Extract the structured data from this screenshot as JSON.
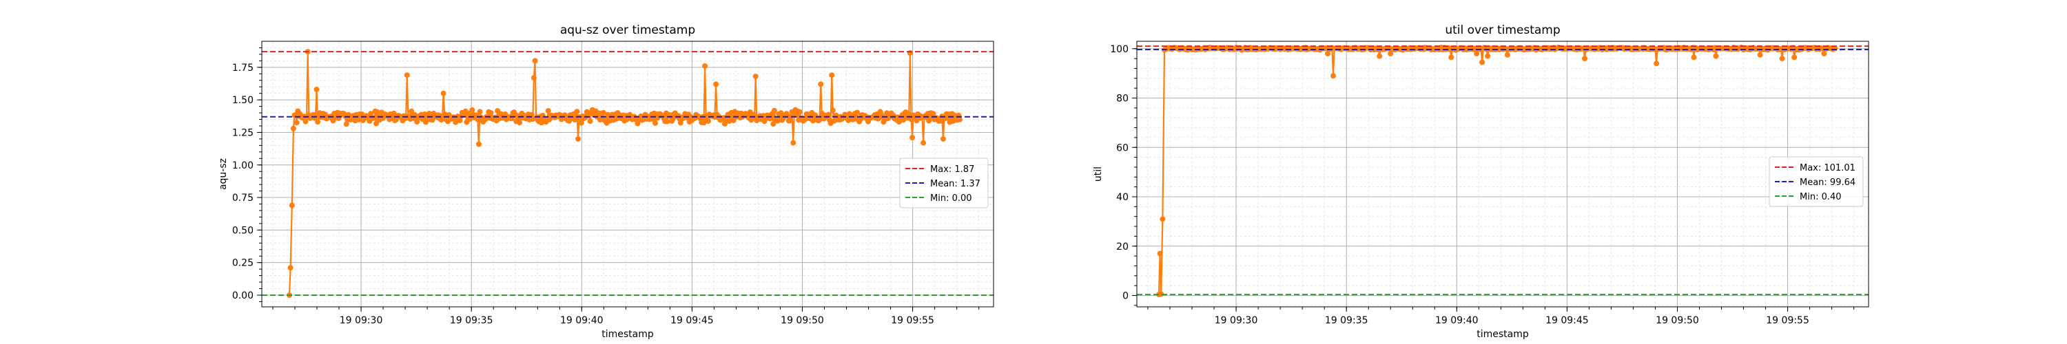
{
  "colors": {
    "series": "#ff7f0e",
    "max_line": "#d62728",
    "mean_line": "#1f1fb4",
    "min_line": "#2ca02c",
    "grid_major": "#b0b0b0",
    "grid_minor": "#e6e6e6"
  },
  "chart_data": [
    {
      "type": "line",
      "title": "aqu-sz over timestamp",
      "xlabel": "timestamp",
      "ylabel": "aqu-sz",
      "xlim": [
        "09:25:30",
        "09:58:40"
      ],
      "ylim": [
        -0.09,
        1.95
      ],
      "x_ticks": [
        "19 09:30",
        "19 09:35",
        "19 09:40",
        "19 09:45",
        "19 09:50",
        "19 09:55"
      ],
      "y_ticks": [
        "0.00",
        "0.25",
        "0.50",
        "0.75",
        "1.00",
        "1.25",
        "1.50",
        "1.75"
      ],
      "grid": true,
      "legend_position": "center-right",
      "series": {
        "start": "09:26:45",
        "end": "09:57:10",
        "baseline": 1.37,
        "spread": 0.06,
        "ramp": [
          {
            "t": "09:26:45",
            "v": 0.0
          },
          {
            "t": "09:26:48",
            "v": 0.21
          },
          {
            "t": "09:26:52",
            "v": 0.69
          },
          {
            "t": "09:26:56",
            "v": 1.28
          }
        ],
        "spikes": [
          {
            "t": "09:27:35",
            "v": 1.87
          },
          {
            "t": "09:28:00",
            "v": 1.58
          },
          {
            "t": "09:32:05",
            "v": 1.69
          },
          {
            "t": "09:33:45",
            "v": 1.55
          },
          {
            "t": "09:35:20",
            "v": 1.16
          },
          {
            "t": "09:37:55",
            "v": 1.8
          },
          {
            "t": "09:37:50",
            "v": 1.67
          },
          {
            "t": "09:39:50",
            "v": 1.2
          },
          {
            "t": "09:45:35",
            "v": 1.76
          },
          {
            "t": "09:46:05",
            "v": 1.62
          },
          {
            "t": "09:47:55",
            "v": 1.68
          },
          {
            "t": "09:49:35",
            "v": 1.17
          },
          {
            "t": "09:50:50",
            "v": 1.62
          },
          {
            "t": "09:51:20",
            "v": 1.69
          },
          {
            "t": "09:54:55",
            "v": 1.86
          },
          {
            "t": "09:55:00",
            "v": 1.21
          },
          {
            "t": "09:55:30",
            "v": 1.17
          },
          {
            "t": "09:56:25",
            "v": 1.2
          }
        ]
      },
      "reference_lines": [
        {
          "label": "Max: 1.87",
          "value": 1.87,
          "style": "dashed",
          "color": "#d62728"
        },
        {
          "label": "Mean: 1.37",
          "value": 1.37,
          "style": "dashed",
          "color": "#1f1fb4"
        },
        {
          "label": "Min: 0.00",
          "value": 0.0,
          "style": "dashed",
          "color": "#2ca02c"
        }
      ]
    },
    {
      "type": "line",
      "title": "util over timestamp",
      "xlabel": "timestamp",
      "ylabel": "util",
      "xlim": [
        "09:25:30",
        "09:58:40"
      ],
      "ylim": [
        -4.6,
        103.0
      ],
      "x_ticks": [
        "19 09:30",
        "19 09:35",
        "19 09:40",
        "19 09:45",
        "19 09:50",
        "19 09:55"
      ],
      "y_ticks": [
        "0",
        "20",
        "40",
        "60",
        "80",
        "100"
      ],
      "grid": true,
      "legend_position": "center-right",
      "series": {
        "start": "09:26:30",
        "end": "09:57:10",
        "baseline": 100.0,
        "spread": 0.6,
        "ramp": [
          {
            "t": "09:26:30",
            "v": 0.4
          },
          {
            "t": "09:26:33",
            "v": 17.0
          },
          {
            "t": "09:26:36",
            "v": 0.6
          },
          {
            "t": "09:26:40",
            "v": 31.0
          },
          {
            "t": "09:26:45",
            "v": 99.5
          }
        ],
        "spikes": [
          {
            "t": "09:34:25",
            "v": 89.0
          },
          {
            "t": "09:34:10",
            "v": 98.0
          },
          {
            "t": "09:36:30",
            "v": 97.0
          },
          {
            "t": "09:37:00",
            "v": 98.0
          },
          {
            "t": "09:39:45",
            "v": 96.5
          },
          {
            "t": "09:40:55",
            "v": 98.0
          },
          {
            "t": "09:41:10",
            "v": 94.5
          },
          {
            "t": "09:41:25",
            "v": 97.0
          },
          {
            "t": "09:42:20",
            "v": 97.5
          },
          {
            "t": "09:45:50",
            "v": 96.0
          },
          {
            "t": "09:49:05",
            "v": 94.0
          },
          {
            "t": "09:50:45",
            "v": 96.5
          },
          {
            "t": "09:51:45",
            "v": 97.0
          },
          {
            "t": "09:53:45",
            "v": 97.5
          },
          {
            "t": "09:54:45",
            "v": 96.0
          },
          {
            "t": "09:55:20",
            "v": 96.5
          },
          {
            "t": "09:56:40",
            "v": 98.0
          }
        ]
      },
      "reference_lines": [
        {
          "label": "Max: 101.01",
          "value": 101.01,
          "style": "dashed",
          "color": "#d62728"
        },
        {
          "label": "Mean: 99.64",
          "value": 99.64,
          "style": "dashed",
          "color": "#1f1fb4"
        },
        {
          "label": "Min: 0.40",
          "value": 0.4,
          "style": "dashed",
          "color": "#2ca02c"
        }
      ]
    }
  ]
}
